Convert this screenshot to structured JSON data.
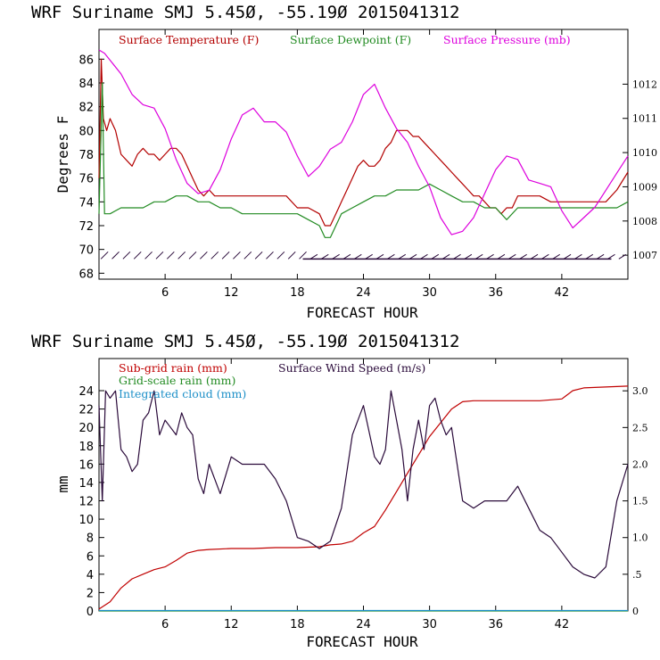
{
  "colors": {
    "temperature": "#b30000",
    "dewpoint": "#228b22",
    "pressure": "#dd00dd",
    "wind": "#2a0a3a",
    "subgrid_rain": "#c00000",
    "gridscale_rain": "#228b22",
    "cloud": "#1e90c8"
  },
  "chart_data": [
    {
      "type": "line",
      "title": "WRF   Suriname SMJ   5.45Ø, -55.19Ø  2015041312",
      "xlabel": "FORECAST HOUR",
      "ylabel": "Degrees F",
      "xlim": [
        0,
        48
      ],
      "ylim": [
        67.5,
        88.5
      ],
      "y2lim": [
        1006.3,
        1013.6
      ],
      "xticks": [
        6,
        12,
        18,
        24,
        30,
        36,
        42
      ],
      "yticks": [
        68,
        70,
        72,
        74,
        76,
        78,
        80,
        82,
        84,
        86
      ],
      "y2ticks": [
        1007,
        1008,
        1009,
        1010,
        1011,
        1012
      ],
      "legend": [
        "Surface Temperature (F)",
        "Surface Dewpoint (F)",
        "Surface Pressure (mb)"
      ],
      "legend_placement": "top",
      "series": [
        {
          "name": "Surface Temperature (F)",
          "axis": "left",
          "x": [
            0,
            0.2,
            0.4,
            0.7,
            1,
            1.5,
            2,
            2.5,
            3,
            3.5,
            4,
            4.5,
            5,
            5.5,
            6,
            6.5,
            7,
            7.5,
            8,
            8.5,
            9,
            9.5,
            10,
            10.5,
            11,
            12,
            13,
            14,
            15,
            16,
            17,
            18,
            19,
            20,
            20.5,
            21,
            21.5,
            22,
            22.5,
            23,
            23.5,
            24,
            24.5,
            25,
            25.5,
            26,
            26.5,
            27,
            27.5,
            28,
            28.5,
            29,
            29.5,
            30,
            30.5,
            31,
            31.5,
            32,
            32.5,
            33,
            33.5,
            34,
            34.5,
            35,
            35.5,
            36,
            36.5,
            37,
            37.5,
            38,
            38.5,
            39,
            40,
            41,
            42,
            43,
            44,
            45,
            46,
            47,
            48
          ],
          "values": [
            76,
            86,
            81,
            80,
            81,
            80,
            78,
            77.5,
            77,
            78,
            78.5,
            78,
            78,
            77.5,
            78,
            78.5,
            78.5,
            78,
            77,
            76,
            75,
            74.5,
            75,
            74.5,
            74.5,
            74.5,
            74.5,
            74.5,
            74.5,
            74.5,
            74.5,
            73.5,
            73.5,
            73,
            72,
            72,
            73,
            74,
            75,
            76,
            77,
            77.5,
            77,
            77,
            77.5,
            78.5,
            79,
            80,
            80,
            80,
            79.5,
            79.5,
            79,
            78.5,
            78,
            77.5,
            77,
            76.5,
            76,
            75.5,
            75,
            74.5,
            74.5,
            74,
            73.5,
            73.5,
            73,
            73.5,
            73.5,
            74.5,
            74.5,
            74.5,
            74.5,
            74,
            74,
            74,
            74,
            74,
            74,
            75,
            76.5
          ]
        },
        {
          "name": "Surface Dewpoint (F)",
          "axis": "left",
          "x": [
            0,
            0.3,
            0.5,
            1,
            2,
            3,
            4,
            5,
            6,
            7,
            8,
            9,
            10,
            11,
            12,
            13,
            14,
            15,
            16,
            17,
            18,
            19,
            20,
            20.5,
            21,
            22,
            23,
            24,
            25,
            26,
            27,
            28,
            29,
            30,
            31,
            32,
            33,
            34,
            35,
            36,
            37,
            38,
            39,
            40,
            41,
            42,
            43,
            44,
            45,
            46,
            47,
            48
          ],
          "values": [
            73,
            84,
            73,
            73,
            73.5,
            73.5,
            73.5,
            74,
            74,
            74.5,
            74.5,
            74,
            74,
            73.5,
            73.5,
            73,
            73,
            73,
            73,
            73,
            73,
            72.5,
            72,
            71,
            71,
            73,
            73.5,
            74,
            74.5,
            74.5,
            75,
            75,
            75,
            75.5,
            75,
            74.5,
            74,
            74,
            73.5,
            73.5,
            72.5,
            73.5,
            73.5,
            73.5,
            73.5,
            73.5,
            73.5,
            73.5,
            73.5,
            73.5,
            73.5,
            74
          ]
        },
        {
          "name": "Surface Pressure (mb)",
          "axis": "right",
          "x": [
            0,
            0.5,
            1,
            2,
            3,
            4,
            5,
            6,
            7,
            8,
            9,
            10,
            11,
            12,
            13,
            14,
            15,
            16,
            17,
            18,
            19,
            20,
            21,
            22,
            23,
            24,
            25,
            26,
            27,
            28,
            29,
            30,
            31,
            32,
            33,
            34,
            35,
            36,
            37,
            38,
            39,
            40,
            41,
            42,
            43,
            44,
            45,
            46,
            47,
            48
          ],
          "values": [
            1013,
            1012.9,
            1012.7,
            1012.3,
            1011.7,
            1011.4,
            1011.3,
            1010.7,
            1009.8,
            1009.1,
            1008.8,
            1008.9,
            1009.5,
            1010.4,
            1011.1,
            1011.3,
            1010.9,
            1010.9,
            1010.6,
            1009.9,
            1009.3,
            1009.6,
            1010.1,
            1010.3,
            1010.9,
            1011.7,
            1012,
            1011.3,
            1010.7,
            1010.3,
            1009.6,
            1009,
            1008.1,
            1007.6,
            1007.7,
            1008.1,
            1008.8,
            1009.5,
            1009.9,
            1009.8,
            1009.2,
            1009.1,
            1009,
            1008.3,
            1007.8,
            1008.1,
            1008.4,
            1008.9,
            1009.4,
            1009.9
          ]
        }
      ]
    },
    {
      "type": "line",
      "title": "WRF   Suriname SMJ   5.45Ø, -55.19Ø  2015041312",
      "xlabel": "FORECAST HOUR",
      "ylabel": "mm",
      "xlim": [
        0,
        48
      ],
      "ylim": [
        0,
        27.5
      ],
      "y2lim": [
        0,
        3.44
      ],
      "xticks": [
        6,
        12,
        18,
        24,
        30,
        36,
        42
      ],
      "yticks": [
        0,
        2,
        4,
        6,
        8,
        10,
        12,
        14,
        16,
        18,
        20,
        22,
        24
      ],
      "y2ticks": [
        0,
        0.5,
        1.0,
        1.5,
        2.0,
        2.5,
        3.0
      ],
      "y2ticklabels": [
        "0",
        ".5",
        "1.0",
        "1.5",
        "2.0",
        "2.5",
        "3.0"
      ],
      "legend": [
        "Sub-grid rain (mm)",
        "Surface Wind Speed (m/s)",
        "Grid-scale rain (mm)",
        "Integrated cloud (mm)"
      ],
      "legend_placement": "top-left",
      "series": [
        {
          "name": "Sub-grid rain (mm)",
          "axis": "left",
          "x": [
            0,
            1,
            2,
            3,
            4,
            5,
            6,
            7,
            8,
            9,
            10,
            12,
            14,
            16,
            18,
            20,
            21,
            22,
            23,
            24,
            25,
            26,
            27,
            28,
            29,
            30,
            31,
            32,
            33,
            34,
            36,
            38,
            40,
            42,
            43,
            44,
            46,
            48
          ],
          "values": [
            0.2,
            1,
            2.5,
            3.5,
            4,
            4.5,
            4.8,
            5.5,
            6.3,
            6.6,
            6.7,
            6.8,
            6.8,
            6.9,
            6.9,
            7,
            7.2,
            7.3,
            7.6,
            8.5,
            9.2,
            11,
            13,
            15,
            17,
            19,
            20.5,
            22,
            22.8,
            22.9,
            22.9,
            22.9,
            22.9,
            23.1,
            24,
            24.3,
            24.4,
            24.5
          ]
        },
        {
          "name": "Surface Wind Speed (m/s)",
          "axis": "right",
          "x": [
            0,
            0.3,
            0.6,
            1,
            1.5,
            2,
            2.5,
            3,
            3.5,
            4,
            4.5,
            5,
            5.5,
            6,
            6.5,
            7,
            7.5,
            8,
            8.5,
            9,
            9.5,
            10,
            11,
            12,
            13,
            14,
            15,
            16,
            17,
            18,
            19,
            20,
            21,
            22,
            23,
            24,
            25,
            25.5,
            26,
            26.5,
            27,
            27.5,
            28,
            28.5,
            29,
            29.5,
            30,
            30.5,
            31,
            31.5,
            32,
            33,
            34,
            35,
            36,
            37,
            38,
            39,
            40,
            41,
            42,
            43,
            44,
            45,
            46,
            47,
            48
          ],
          "values": [
            2.8,
            1.5,
            3.0,
            2.9,
            3.0,
            2.2,
            2.1,
            1.9,
            2.0,
            2.6,
            2.7,
            3.0,
            2.4,
            2.6,
            2.5,
            2.4,
            2.7,
            2.5,
            2.4,
            1.8,
            1.6,
            2.0,
            1.6,
            2.1,
            2.0,
            2.0,
            2.0,
            1.8,
            1.5,
            1.0,
            0.95,
            0.85,
            0.95,
            1.4,
            2.4,
            2.8,
            2.1,
            2.0,
            2.2,
            3.0,
            2.6,
            2.2,
            1.5,
            2.2,
            2.6,
            2.2,
            2.8,
            2.9,
            2.6,
            2.4,
            2.5,
            1.5,
            1.4,
            1.5,
            1.5,
            1.5,
            1.7,
            1.4,
            1.1,
            1.0,
            0.8,
            0.6,
            0.5,
            0.45,
            0.6,
            1.5,
            2.0
          ]
        },
        {
          "name": "Grid-scale rain (mm)",
          "axis": "left",
          "x": [
            0,
            48
          ],
          "values": [
            0,
            0
          ]
        },
        {
          "name": "Integrated cloud (mm)",
          "axis": "left",
          "x": [
            0,
            48
          ],
          "values": [
            0.05,
            0.05
          ]
        }
      ]
    }
  ]
}
